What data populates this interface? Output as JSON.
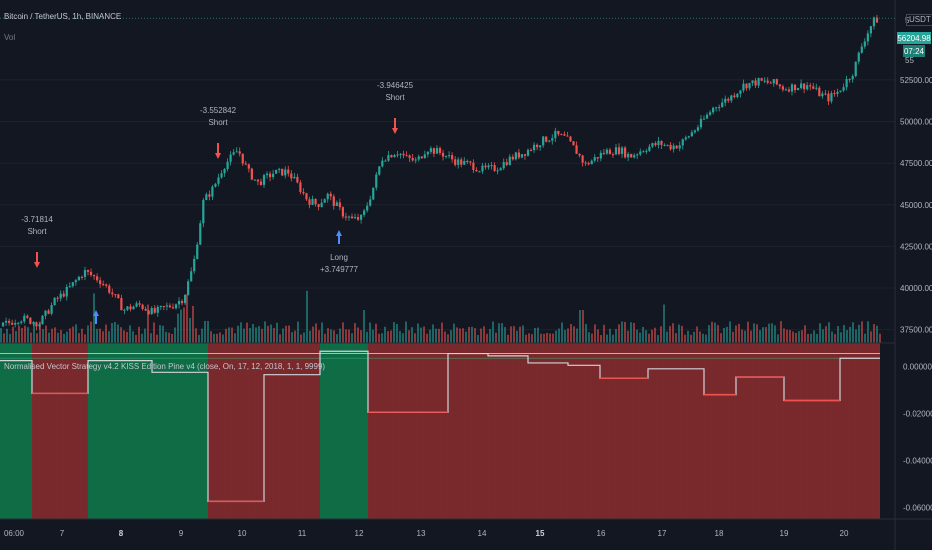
{
  "header": {
    "symbol_title": "Bitcoin / TetherUS, 1h, BINANCE",
    "volume_label": "Vol",
    "currency": "USDT"
  },
  "indicator": {
    "title": "Normalised Vector Strategy v4.2 KISS Edition Pine v4 (close, On, 17, 12, 2018, 1, 1, 9999)"
  },
  "price_axis": {
    "last_price": "56204.98",
    "countdown": "07:24",
    "ticks": [
      "52500.00",
      "50000.00",
      "47500.00",
      "45000.00",
      "42500.00",
      "40000.00",
      "37500.00"
    ],
    "edge_labels": [
      "5",
      "55"
    ]
  },
  "indicator_axis": {
    "ticks": [
      "0.000000",
      "-0.020000",
      "-0.040000",
      "-0.060000"
    ]
  },
  "time_axis": {
    "labels": [
      "06:00",
      "7",
      "8",
      "9",
      "10",
      "11",
      "12",
      "13",
      "14",
      "15",
      "16",
      "17",
      "18",
      "19",
      "20"
    ],
    "bold": [
      "8",
      "15"
    ]
  },
  "colors": {
    "background": "#131722",
    "up": "#26a69a",
    "down": "#ef5350",
    "green_zone": "#0f6b45",
    "red_zone": "#8a2b2d",
    "yellow_line": "#c9c63a",
    "signal_line": "#d1d4dc"
  },
  "chart_data": {
    "type": "candlestick",
    "price_ylim": [
      36700,
      57300
    ],
    "indicator_ylim": [
      -0.065,
      0.01
    ],
    "trades": [
      {
        "type": "Short",
        "value": "-3.71814"
      },
      {
        "type": "Short",
        "value": "-3.552842"
      },
      {
        "type": "Long",
        "value": "+3.749777"
      },
      {
        "type": "Short",
        "value": "-3.946425"
      }
    ],
    "price_path": [
      [
        0,
        37700
      ],
      [
        2,
        38200
      ],
      [
        4,
        37900
      ],
      [
        5.5,
        39200
      ],
      [
        7,
        40000
      ],
      [
        8.5,
        41000
      ],
      [
        10,
        40500
      ],
      [
        11,
        39900
      ],
      [
        12.5,
        38700
      ],
      [
        14,
        39000
      ],
      [
        15.5,
        38500
      ],
      [
        16.5,
        38800
      ],
      [
        17.5,
        39000
      ],
      [
        18.5,
        39400
      ],
      [
        19.5,
        41400
      ],
      [
        20.5,
        45200
      ],
      [
        21.5,
        46000
      ],
      [
        22.5,
        47300
      ],
      [
        24,
        48300
      ],
      [
        25,
        47000
      ],
      [
        26,
        46300
      ],
      [
        27.5,
        46900
      ],
      [
        29,
        47000
      ],
      [
        30,
        46200
      ],
      [
        31,
        45300
      ],
      [
        32,
        45000
      ],
      [
        33,
        45600
      ],
      [
        34.5,
        44500
      ],
      [
        35.5,
        44100
      ],
      [
        36.5,
        44200
      ],
      [
        37.5,
        45800
      ],
      [
        38.5,
        47800
      ],
      [
        40,
        48200
      ],
      [
        41,
        47800
      ],
      [
        42,
        47600
      ],
      [
        43,
        48400
      ],
      [
        44.5,
        48100
      ],
      [
        46,
        47600
      ],
      [
        47.5,
        47400
      ],
      [
        48.5,
        47100
      ],
      [
        50,
        47200
      ],
      [
        51.5,
        47800
      ],
      [
        53,
        48200
      ],
      [
        54.5,
        48800
      ],
      [
        56,
        49200
      ],
      [
        57,
        49000
      ],
      [
        58,
        48300
      ],
      [
        59,
        47400
      ],
      [
        60,
        47800
      ],
      [
        61,
        48200
      ],
      [
        62.5,
        48300
      ],
      [
        63.5,
        47900
      ],
      [
        65,
        48400
      ],
      [
        66.5,
        48700
      ],
      [
        67.5,
        48500
      ],
      [
        68.5,
        48600
      ],
      [
        69.5,
        49200
      ],
      [
        70.5,
        49800
      ],
      [
        72,
        50900
      ],
      [
        73.5,
        51400
      ],
      [
        75,
        52200
      ],
      [
        76.5,
        52400
      ],
      [
        78,
        52300
      ],
      [
        79,
        52000
      ],
      [
        80,
        52100
      ],
      [
        81.5,
        52200
      ],
      [
        82.5,
        51700
      ],
      [
        83.5,
        51400
      ],
      [
        84.5,
        51800
      ],
      [
        86,
        53000
      ],
      [
        87,
        54800
      ],
      [
        88,
        56000
      ],
      [
        88.7,
        56200
      ]
    ],
    "signal_segments": [
      [
        0,
        4,
        0.0025
      ],
      [
        4,
        11,
        -0.0115
      ],
      [
        11,
        19,
        0.0025
      ],
      [
        19,
        26,
        -0.0025
      ],
      [
        26,
        33,
        -0.0575
      ],
      [
        33,
        40,
        -0.0035
      ],
      [
        40,
        46,
        0.0065
      ],
      [
        46,
        56,
        -0.0195
      ],
      [
        56,
        61,
        0.0055
      ],
      [
        61,
        66,
        0.0045
      ],
      [
        66,
        71,
        0.0015
      ],
      [
        71,
        75,
        0.0005
      ],
      [
        75,
        81,
        -0.005
      ],
      [
        81,
        88,
        -0.001
      ],
      [
        88,
        92,
        -0.012
      ],
      [
        92,
        98,
        -0.0045
      ],
      [
        98,
        105,
        -0.0145
      ],
      [
        105,
        110,
        0.0035
      ]
    ],
    "green_zones": [
      [
        0,
        4
      ],
      [
        11,
        26
      ],
      [
        40,
        46
      ]
    ],
    "days": 15
  }
}
